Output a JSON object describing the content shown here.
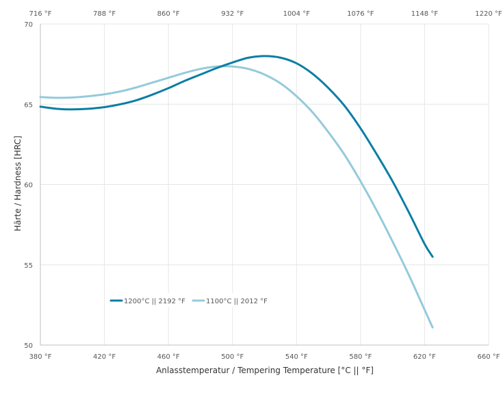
{
  "chart_data": {
    "type": "line",
    "title": "",
    "xlabel": "Anlasstemperatur / Tempering Temperature [°C || °F]",
    "ylabel": "Härte / Hardness [HRC]",
    "xlim": [
      380,
      660
    ],
    "ylim": [
      50,
      70
    ],
    "x_ticks": [
      "380 °F",
      "420 °F",
      "460 °F",
      "500 °F",
      "540 °F",
      "580 °F",
      "620 °F",
      "660 °F"
    ],
    "x_tick_values": [
      380,
      420,
      460,
      500,
      540,
      580,
      620,
      660
    ],
    "x2_ticks": [
      "716 °F",
      "788 °F",
      "860 °F",
      "932 °F",
      "1004 °F",
      "1076 °F",
      "1148 °F",
      "1220 °F"
    ],
    "y_ticks": [
      "50",
      "55",
      "60",
      "65",
      "70"
    ],
    "y_tick_values": [
      50,
      55,
      60,
      65,
      70
    ],
    "grid": true,
    "legend_position": "bottom-left",
    "series": [
      {
        "name": "1200°C || 2192 °F",
        "color": "#0a7ea4",
        "x": [
          380,
          390,
          400,
          410,
          420,
          430,
          440,
          450,
          460,
          470,
          480,
          490,
          500,
          510,
          520,
          530,
          540,
          550,
          560,
          570,
          580,
          590,
          600,
          610,
          620,
          625
        ],
        "y": [
          64.85,
          64.72,
          64.68,
          64.72,
          64.82,
          65.0,
          65.25,
          65.6,
          66.0,
          66.45,
          66.85,
          67.25,
          67.6,
          67.9,
          68.0,
          67.9,
          67.55,
          66.9,
          66.0,
          64.9,
          63.5,
          61.9,
          60.2,
          58.3,
          56.3,
          55.5
        ]
      },
      {
        "name": "1100°C || 2012 °F",
        "color": "#94cadb",
        "x": [
          380,
          390,
          400,
          410,
          420,
          430,
          440,
          450,
          460,
          470,
          480,
          490,
          500,
          510,
          520,
          530,
          540,
          550,
          560,
          570,
          580,
          590,
          600,
          610,
          620,
          625
        ],
        "y": [
          65.45,
          65.4,
          65.42,
          65.5,
          65.62,
          65.8,
          66.05,
          66.35,
          66.65,
          66.95,
          67.2,
          67.35,
          67.35,
          67.2,
          66.85,
          66.3,
          65.5,
          64.5,
          63.25,
          61.85,
          60.2,
          58.4,
          56.45,
          54.4,
          52.2,
          51.1
        ]
      }
    ]
  }
}
